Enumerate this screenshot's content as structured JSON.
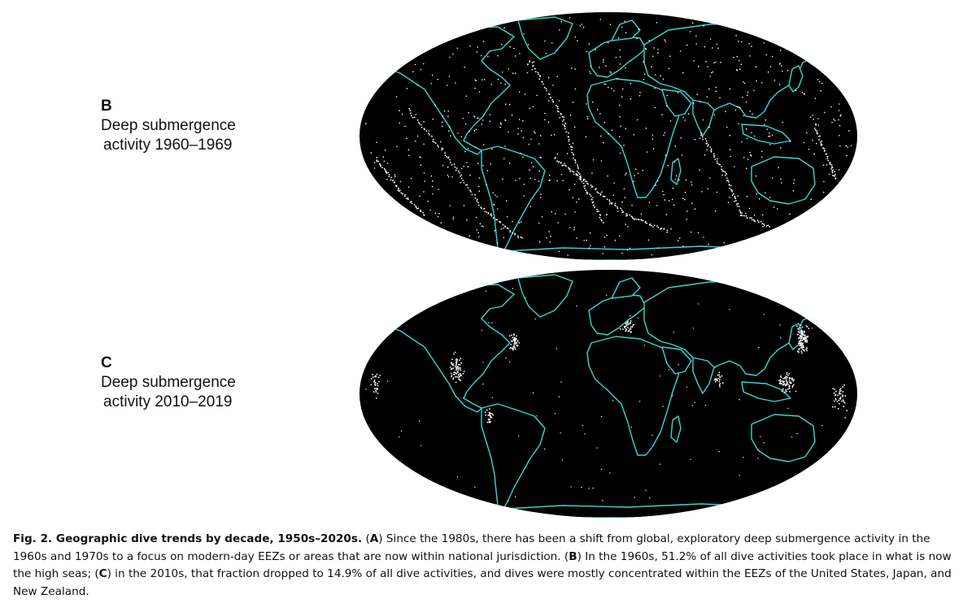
{
  "panels": [
    {
      "letter": "B",
      "title_line1": "Deep submergence",
      "title_line2": "activity 1960–1969",
      "dot_pattern": "global-dispersed"
    },
    {
      "letter": "C",
      "title_line1": "Deep submergence",
      "title_line2": "activity 2010–2019",
      "dot_pattern": "coastal-concentrated"
    }
  ],
  "colors": {
    "ocean": "#000000",
    "coastline": "#3ad6d0",
    "dive_points": "#ffffff"
  },
  "caption": {
    "fig_label": "Fig. 2. Geographic dive trends by decade, 1950s–2020s.",
    "a_open": " (",
    "a_letter": "A",
    "a_text": ") Since the 1980s, there has been a shift from global, exploratory deep submergence activity in the 1960s and 1970s to a focus on modern-day EEZs or areas that are now within national jurisdiction. (",
    "b_letter": "B",
    "b_text": ") In the 1960s, 51.2% of all dive activities took place in what is now the high seas; (",
    "c_letter": "C",
    "c_text": ") in the 2010s, that fraction dropped to 14.9% of all dive activities, and dives were mostly concentrated within the EEZs of the United States, Japan, and New Zealand."
  }
}
